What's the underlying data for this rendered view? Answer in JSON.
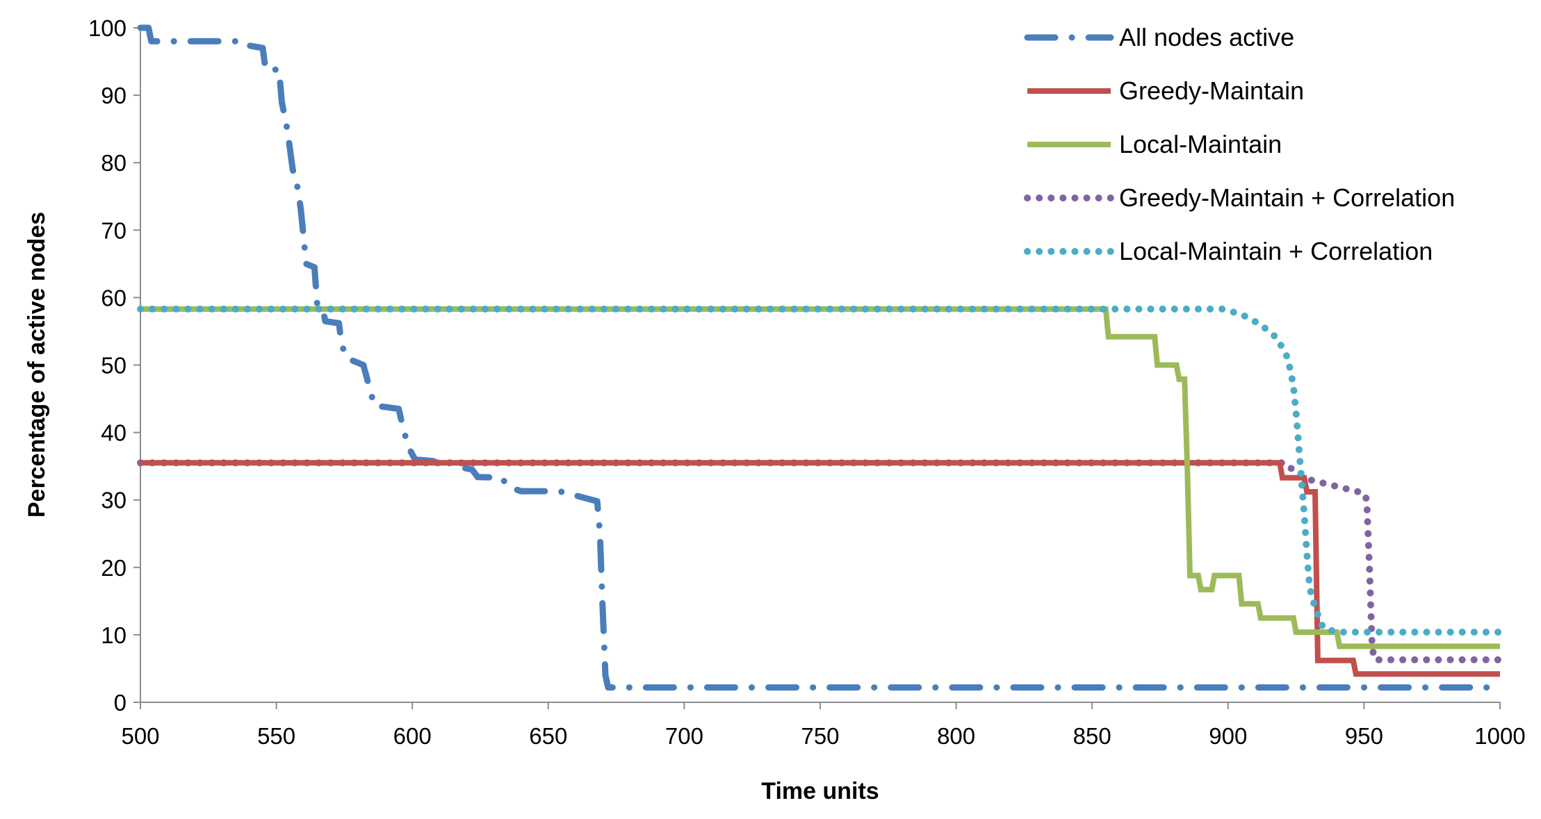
{
  "chart_data": {
    "type": "line",
    "title": "",
    "xlabel": "Time units",
    "ylabel": "Percentage of active nodes",
    "xlim": [
      500,
      1000
    ],
    "ylim": [
      0,
      100
    ],
    "x_ticks": [
      500,
      550,
      600,
      650,
      700,
      750,
      800,
      850,
      900,
      950,
      1000
    ],
    "y_ticks": [
      0,
      10,
      20,
      30,
      40,
      50,
      60,
      70,
      80,
      90,
      100
    ],
    "grid": false,
    "legend_position": "top-right",
    "series": [
      {
        "name": "All nodes active",
        "color": "#4A7EBB",
        "style": "dash-dot",
        "points": [
          [
            500,
            100
          ],
          [
            503,
            100
          ],
          [
            504,
            98
          ],
          [
            525,
            98
          ],
          [
            537,
            98
          ],
          [
            538,
            97.5
          ],
          [
            545,
            97
          ],
          [
            546,
            93.8
          ],
          [
            551,
            93.8
          ],
          [
            552,
            89
          ],
          [
            554,
            85
          ],
          [
            555,
            82
          ],
          [
            556,
            79
          ],
          [
            558,
            76
          ],
          [
            559,
            73
          ],
          [
            560,
            69
          ],
          [
            561,
            65
          ],
          [
            564,
            64.5
          ],
          [
            565,
            59
          ],
          [
            567,
            58.5
          ],
          [
            568,
            56.5
          ],
          [
            573,
            56.2
          ],
          [
            574,
            53
          ],
          [
            576,
            51
          ],
          [
            582,
            50
          ],
          [
            584,
            47
          ],
          [
            586,
            44
          ],
          [
            595,
            43.5
          ],
          [
            597,
            40
          ],
          [
            599,
            37.5
          ],
          [
            601,
            36
          ],
          [
            615,
            35.5
          ],
          [
            616,
            35
          ],
          [
            622,
            34.5
          ],
          [
            624,
            33.4
          ],
          [
            633,
            33.3
          ],
          [
            635,
            32
          ],
          [
            640,
            31.3
          ],
          [
            650,
            31.3
          ],
          [
            655,
            31.2
          ],
          [
            668,
            29.8
          ],
          [
            669,
            25
          ],
          [
            670,
            14
          ],
          [
            671,
            4
          ],
          [
            672,
            2.2
          ],
          [
            1000,
            2.2
          ]
        ]
      },
      {
        "name": "Greedy-Maintain",
        "color": "#C0504D",
        "style": "solid",
        "points": [
          [
            500,
            35.5
          ],
          [
            919,
            35.5
          ],
          [
            920,
            33.3
          ],
          [
            928,
            33.3
          ],
          [
            929,
            31.2
          ],
          [
            932,
            31.2
          ],
          [
            933,
            6.2
          ],
          [
            946,
            6.2
          ],
          [
            947,
            4.2
          ],
          [
            1000,
            4.2
          ]
        ]
      },
      {
        "name": "Local-Maintain",
        "color": "#9BBB59",
        "style": "solid",
        "points": [
          [
            500,
            58.3
          ],
          [
            855,
            58.3
          ],
          [
            856,
            54.2
          ],
          [
            873,
            54.2
          ],
          [
            874,
            50
          ],
          [
            881,
            50
          ],
          [
            882,
            47.9
          ],
          [
            884,
            47.9
          ],
          [
            885,
            35
          ],
          [
            886,
            18.8
          ],
          [
            889,
            18.8
          ],
          [
            890,
            16.7
          ],
          [
            894,
            16.7
          ],
          [
            895,
            18.8
          ],
          [
            904,
            18.8
          ],
          [
            905,
            14.6
          ],
          [
            911,
            14.6
          ],
          [
            912,
            12.5
          ],
          [
            924,
            12.5
          ],
          [
            925,
            10.4
          ],
          [
            940,
            10.4
          ],
          [
            941,
            8.3
          ],
          [
            1000,
            8.3
          ]
        ]
      },
      {
        "name": "Greedy-Maintain + Correlation",
        "color": "#8064A2",
        "style": "dotted",
        "points": [
          [
            500,
            35.5
          ],
          [
            921,
            35.5
          ],
          [
            925,
            34
          ],
          [
            930,
            33
          ],
          [
            940,
            32
          ],
          [
            950,
            31
          ],
          [
            951,
            30
          ],
          [
            952,
            20
          ],
          [
            953,
            8
          ],
          [
            954,
            6.3
          ],
          [
            1000,
            6.3
          ]
        ]
      },
      {
        "name": "Local-Maintain + Correlation",
        "color": "#4BACC6",
        "style": "dotted",
        "points": [
          [
            500,
            58.3
          ],
          [
            898,
            58.3
          ],
          [
            905,
            57.5
          ],
          [
            912,
            56
          ],
          [
            918,
            54
          ],
          [
            922,
            51
          ],
          [
            924,
            47
          ],
          [
            925,
            43
          ],
          [
            926,
            38
          ],
          [
            927,
            33
          ],
          [
            928,
            28
          ],
          [
            929,
            22
          ],
          [
            930,
            17
          ],
          [
            932,
            14
          ],
          [
            935,
            11
          ],
          [
            940,
            10.4
          ],
          [
            1000,
            10.4
          ]
        ]
      }
    ]
  }
}
